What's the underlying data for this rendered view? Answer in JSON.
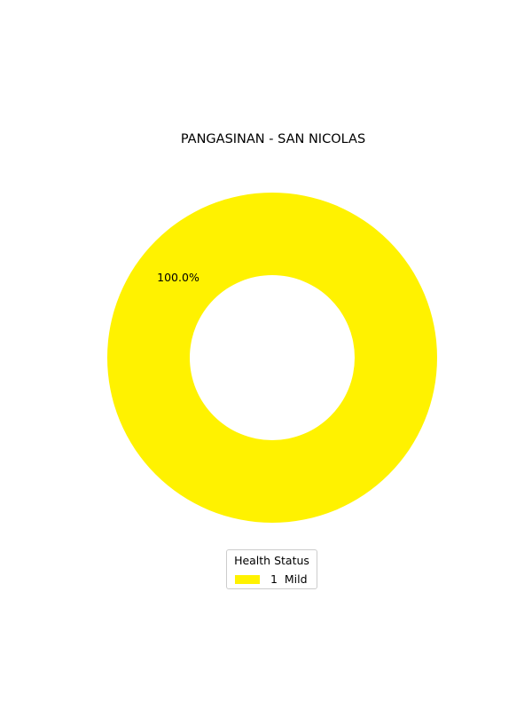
{
  "chart_data": {
    "type": "pie",
    "title": "PANGASINAN - SAN NICOLAS",
    "slices": [
      {
        "label": "1  Mild",
        "value": 1,
        "percent_label": "100.0%",
        "color": "#fff200"
      }
    ],
    "legend": {
      "title": "Health Status",
      "placement": "bottom-center"
    },
    "donut": true
  }
}
